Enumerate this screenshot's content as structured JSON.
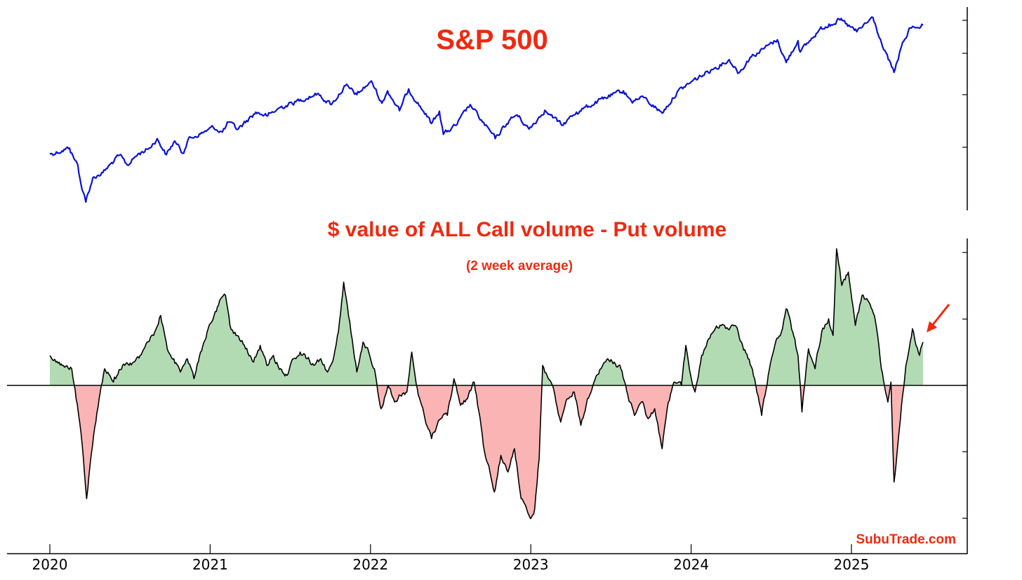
{
  "chart_data": [
    {
      "type": "line",
      "title": "S&P 500",
      "x_range": [
        "2020-01-01",
        "2025-12-31"
      ],
      "series": [
        {
          "color": "#0a12d8",
          "points": [
            [
              "2020-01-01",
              3250
            ],
            [
              "2020-02-15",
              3380
            ],
            [
              "2020-02-25",
              3160
            ],
            [
              "2020-03-05",
              3020
            ],
            [
              "2020-03-12",
              2620
            ],
            [
              "2020-03-23",
              2240
            ],
            [
              "2020-04-08",
              2750
            ],
            [
              "2020-05-01",
              2860
            ],
            [
              "2020-06-08",
              3230
            ],
            [
              "2020-06-26",
              3020
            ],
            [
              "2020-07-20",
              3250
            ],
            [
              "2020-08-15",
              3380
            ],
            [
              "2020-09-02",
              3580
            ],
            [
              "2020-09-23",
              3240
            ],
            [
              "2020-10-12",
              3530
            ],
            [
              "2020-10-30",
              3270
            ],
            [
              "2020-11-12",
              3570
            ],
            [
              "2020-12-15",
              3700
            ],
            [
              "2021-01-08",
              3820
            ],
            [
              "2021-01-29",
              3720
            ],
            [
              "2021-02-12",
              3930
            ],
            [
              "2021-03-04",
              3770
            ],
            [
              "2021-04-15",
              4140
            ],
            [
              "2021-05-12",
              4060
            ],
            [
              "2021-06-10",
              4240
            ],
            [
              "2021-07-15",
              4360
            ],
            [
              "2021-08-15",
              4470
            ],
            [
              "2021-09-02",
              4530
            ],
            [
              "2021-10-04",
              4300
            ],
            [
              "2021-11-05",
              4700
            ],
            [
              "2021-12-01",
              4510
            ],
            [
              "2021-12-31",
              4770
            ],
            [
              "2022-01-03",
              4800
            ],
            [
              "2022-01-27",
              4330
            ],
            [
              "2022-02-09",
              4590
            ],
            [
              "2022-03-08",
              4170
            ],
            [
              "2022-03-29",
              4630
            ],
            [
              "2022-05-02",
              4150
            ],
            [
              "2022-05-20",
              3900
            ],
            [
              "2022-06-07",
              4160
            ],
            [
              "2022-06-16",
              3670
            ],
            [
              "2022-07-15",
              3860
            ],
            [
              "2022-08-16",
              4300
            ],
            [
              "2022-09-13",
              3930
            ],
            [
              "2022-10-12",
              3580
            ],
            [
              "2022-11-15",
              3990
            ],
            [
              "2022-12-01",
              4080
            ],
            [
              "2022-12-28",
              3780
            ],
            [
              "2023-02-02",
              4180
            ],
            [
              "2023-03-13",
              3860
            ],
            [
              "2023-04-15",
              4140
            ],
            [
              "2023-06-15",
              4420
            ],
            [
              "2023-07-31",
              4590
            ],
            [
              "2023-08-18",
              4370
            ],
            [
              "2023-09-15",
              4450
            ],
            [
              "2023-10-27",
              4120
            ],
            [
              "2023-11-30",
              4560
            ],
            [
              "2023-12-31",
              4770
            ],
            [
              "2024-02-15",
              5030
            ],
            [
              "2024-03-28",
              5250
            ],
            [
              "2024-04-19",
              4970
            ],
            [
              "2024-05-15",
              5300
            ],
            [
              "2024-07-16",
              5670
            ],
            [
              "2024-08-05",
              5190
            ],
            [
              "2024-09-01",
              5650
            ],
            [
              "2024-09-06",
              5410
            ],
            [
              "2024-10-18",
              5860
            ],
            [
              "2024-11-11",
              6000
            ],
            [
              "2024-12-06",
              6090
            ],
            [
              "2025-01-13",
              5840
            ],
            [
              "2025-02-19",
              6140
            ],
            [
              "2025-03-13",
              5520
            ],
            [
              "2025-04-08",
              4980
            ],
            [
              "2025-04-25",
              5530
            ],
            [
              "2025-05-15",
              5920
            ],
            [
              "2025-06-13",
              5980
            ]
          ]
        }
      ]
    },
    {
      "type": "area",
      "title": "$ value of ALL Call volume - Put volume",
      "subtitle": "(2 week average)",
      "x_range": [
        "2020-01-01",
        "2025-12-31"
      ],
      "baseline": 0,
      "positive_color": "#b3dbb3",
      "negative_color": "#fbb4b4",
      "line_color": "#000000",
      "series": [
        {
          "points": [
            [
              "2020-01-01",
              0.9
            ],
            [
              "2020-01-15",
              0.7
            ],
            [
              "2020-02-01",
              0.6
            ],
            [
              "2020-02-20",
              0.5
            ],
            [
              "2020-03-01",
              -0.4
            ],
            [
              "2020-03-15",
              -1.8
            ],
            [
              "2020-03-25",
              -3.4
            ],
            [
              "2020-04-10",
              -1.5
            ],
            [
              "2020-04-25",
              -0.2
            ],
            [
              "2020-05-05",
              0.5
            ],
            [
              "2020-05-25",
              0.1
            ],
            [
              "2020-06-15",
              0.6
            ],
            [
              "2020-07-10",
              0.7
            ],
            [
              "2020-07-25",
              0.9
            ],
            [
              "2020-08-10",
              1.3
            ],
            [
              "2020-08-25",
              1.5
            ],
            [
              "2020-09-10",
              2.1
            ],
            [
              "2020-09-25",
              1.1
            ],
            [
              "2020-10-10",
              0.8
            ],
            [
              "2020-10-25",
              0.4
            ],
            [
              "2020-11-10",
              0.8
            ],
            [
              "2020-11-25",
              0.2
            ],
            [
              "2020-12-10",
              1.0
            ],
            [
              "2020-12-25",
              1.6
            ],
            [
              "2021-01-10",
              2.1
            ],
            [
              "2021-01-25",
              2.6
            ],
            [
              "2021-02-05",
              2.7
            ],
            [
              "2021-02-15",
              1.8
            ],
            [
              "2021-03-01",
              1.5
            ],
            [
              "2021-03-20",
              1.2
            ],
            [
              "2021-04-10",
              0.7
            ],
            [
              "2021-04-25",
              1.2
            ],
            [
              "2021-05-10",
              0.6
            ],
            [
              "2021-05-25",
              0.9
            ],
            [
              "2021-06-10",
              0.5
            ],
            [
              "2021-06-25",
              0.3
            ],
            [
              "2021-07-10",
              0.8
            ],
            [
              "2021-07-25",
              1.0
            ],
            [
              "2021-08-10",
              0.8
            ],
            [
              "2021-08-25",
              0.6
            ],
            [
              "2021-09-10",
              0.8
            ],
            [
              "2021-09-25",
              0.4
            ],
            [
              "2021-10-10",
              0.9
            ],
            [
              "2021-10-20",
              1.6
            ],
            [
              "2021-11-01",
              3.1
            ],
            [
              "2021-11-15",
              1.9
            ],
            [
              "2021-12-01",
              0.4
            ],
            [
              "2021-12-15",
              1.3
            ],
            [
              "2021-12-28",
              1.0
            ],
            [
              "2022-01-10",
              0.5
            ],
            [
              "2022-01-25",
              -0.7
            ],
            [
              "2022-02-10",
              0.0
            ],
            [
              "2022-02-25",
              -0.5
            ],
            [
              "2022-03-10",
              -0.3
            ],
            [
              "2022-03-25",
              -0.2
            ],
            [
              "2022-04-05",
              1.0
            ],
            [
              "2022-04-20",
              -0.3
            ],
            [
              "2022-05-05",
              -1.0
            ],
            [
              "2022-05-20",
              -1.6
            ],
            [
              "2022-06-10",
              -1.0
            ],
            [
              "2022-06-25",
              -0.9
            ],
            [
              "2022-07-10",
              0.2
            ],
            [
              "2022-07-25",
              -0.6
            ],
            [
              "2022-08-10",
              -0.4
            ],
            [
              "2022-08-25",
              0.1
            ],
            [
              "2022-09-05",
              -0.8
            ],
            [
              "2022-09-15",
              -1.8
            ],
            [
              "2022-09-30",
              -2.6
            ],
            [
              "2022-10-10",
              -3.2
            ],
            [
              "2022-10-25",
              -2.1
            ],
            [
              "2022-11-10",
              -2.6
            ],
            [
              "2022-11-25",
              -1.9
            ],
            [
              "2022-12-10",
              -3.4
            ],
            [
              "2022-12-20",
              -3.6
            ],
            [
              "2022-12-31",
              -4.0
            ],
            [
              "2023-01-10",
              -3.7
            ],
            [
              "2023-01-20",
              -2.2
            ],
            [
              "2023-01-28",
              0.6
            ],
            [
              "2023-02-10",
              0.2
            ],
            [
              "2023-02-25",
              -0.3
            ],
            [
              "2023-03-10",
              -1.1
            ],
            [
              "2023-03-25",
              -0.4
            ],
            [
              "2023-04-10",
              -0.2
            ],
            [
              "2023-04-25",
              -1.2
            ],
            [
              "2023-05-10",
              -0.4
            ],
            [
              "2023-05-25",
              0.1
            ],
            [
              "2023-06-10",
              0.5
            ],
            [
              "2023-06-25",
              0.8
            ],
            [
              "2023-07-10",
              0.7
            ],
            [
              "2023-07-25",
              0.5
            ],
            [
              "2023-08-10",
              -0.3
            ],
            [
              "2023-08-25",
              -0.9
            ],
            [
              "2023-09-10",
              -0.5
            ],
            [
              "2023-09-25",
              -1.0
            ],
            [
              "2023-10-10",
              -0.7
            ],
            [
              "2023-10-27",
              -1.9
            ],
            [
              "2023-11-10",
              -0.5
            ],
            [
              "2023-11-25",
              0.1
            ],
            [
              "2023-12-10",
              0.0
            ],
            [
              "2023-12-20",
              1.2
            ],
            [
              "2023-12-31",
              0.3
            ],
            [
              "2024-01-10",
              -0.2
            ],
            [
              "2024-01-25",
              0.9
            ],
            [
              "2024-02-10",
              1.4
            ],
            [
              "2024-02-25",
              1.7
            ],
            [
              "2024-03-10",
              1.8
            ],
            [
              "2024-03-25",
              1.7
            ],
            [
              "2024-04-10",
              1.8
            ],
            [
              "2024-04-25",
              1.3
            ],
            [
              "2024-05-10",
              0.8
            ],
            [
              "2024-05-25",
              0.2
            ],
            [
              "2024-06-10",
              -0.9
            ],
            [
              "2024-06-25",
              0.3
            ],
            [
              "2024-07-10",
              1.2
            ],
            [
              "2024-07-25",
              1.6
            ],
            [
              "2024-08-05",
              2.3
            ],
            [
              "2024-08-20",
              1.6
            ],
            [
              "2024-09-01",
              0.9
            ],
            [
              "2024-09-10",
              -0.8
            ],
            [
              "2024-09-25",
              1.1
            ],
            [
              "2024-10-10",
              0.5
            ],
            [
              "2024-10-25",
              1.6
            ],
            [
              "2024-11-10",
              2.0
            ],
            [
              "2024-11-20",
              1.5
            ],
            [
              "2024-11-28",
              4.1
            ],
            [
              "2024-12-10",
              3.0
            ],
            [
              "2024-12-25",
              3.4
            ],
            [
              "2025-01-10",
              1.8
            ],
            [
              "2025-01-25",
              2.7
            ],
            [
              "2025-02-10",
              2.5
            ],
            [
              "2025-02-25",
              1.9
            ],
            [
              "2025-03-10",
              0.5
            ],
            [
              "2025-03-25",
              -0.5
            ],
            [
              "2025-04-01",
              0.1
            ],
            [
              "2025-04-08",
              -2.9
            ],
            [
              "2025-04-15",
              -2.0
            ],
            [
              "2025-04-25",
              -0.6
            ],
            [
              "2025-05-05",
              0.6
            ],
            [
              "2025-05-20",
              1.7
            ],
            [
              "2025-05-28",
              1.2
            ],
            [
              "2025-06-05",
              0.9
            ],
            [
              "2025-06-13",
              1.3
            ]
          ]
        }
      ]
    }
  ],
  "x_tick_labels": [
    "2020",
    "2021",
    "2022",
    "2023",
    "2024",
    "2025"
  ],
  "watermark": "SubuTrade.com",
  "annotation": {
    "type": "arrow",
    "color": "#ee2a10",
    "target": [
      "2025-06-13",
      1.3
    ]
  }
}
